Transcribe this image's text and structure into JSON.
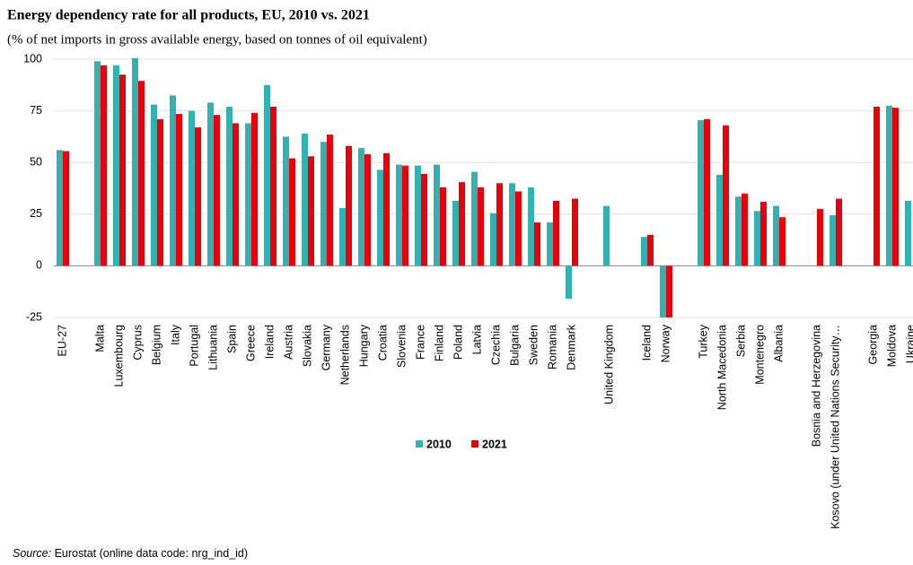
{
  "chart_data": {
    "type": "bar",
    "title": "Energy dependency rate for all products, EU, 2010 vs. 2021",
    "subtitle": "(% of net imports in gross available energy, based on tonnes of oil equivalent)",
    "source_label": "Source:",
    "source": "Eurostat (online data code: nrg_ind_id)",
    "categories": [
      "EU-27",
      null,
      "Malta",
      "Luxembourg",
      "Cyprus",
      "Belgium",
      "Italy",
      "Portugal",
      "Lithuania",
      "Spain",
      "Greece",
      "Ireland",
      "Austria",
      "Slovakia",
      "Germany",
      "Netherlands",
      "Hungary",
      "Croatia",
      "Slovenia",
      "France",
      "Finland",
      "Poland",
      "Latvia",
      "Czechia",
      "Bulgaria",
      "Sweden",
      "Romania",
      "Denmark",
      null,
      "United Kingdom",
      null,
      "Iceland",
      "Norway",
      null,
      "Turkey",
      "North Macedonia",
      "Serbia",
      "Montenegro",
      "Albania",
      null,
      "Bosnia and Herzegovina",
      "Kosovo (under United Nations Security…",
      null,
      "Georgia",
      "Moldova",
      "Ukraine"
    ],
    "series": [
      {
        "name": "2010",
        "color": "#33b1b1",
        "values": [
          56,
          null,
          99,
          97,
          100.5,
          78,
          82.5,
          75,
          79,
          77,
          69,
          87.5,
          62.5,
          64,
          60,
          28,
          57,
          46.5,
          49,
          48.5,
          49,
          31.5,
          45.5,
          25.5,
          40,
          38,
          21,
          -16,
          null,
          29,
          null,
          14,
          -25,
          null,
          70.5,
          44,
          33.5,
          26.5,
          29,
          null,
          null,
          24.5,
          null,
          null,
          77.5,
          31.5
        ]
      },
      {
        "name": "2021",
        "color": "#e8000b",
        "values": [
          55.5,
          null,
          97,
          92.5,
          89.5,
          71,
          73.5,
          67,
          73,
          69,
          74,
          77,
          52,
          53,
          63.5,
          58,
          54,
          54.5,
          48.5,
          44.5,
          38,
          40.5,
          38,
          40,
          36,
          21,
          31.5,
          32.5,
          null,
          null,
          null,
          15,
          -25,
          null,
          71,
          68,
          35,
          31,
          23.5,
          null,
          27.5,
          32.5,
          null,
          77,
          76.5,
          null
        ]
      }
    ],
    "ylim": [
      -25,
      100
    ],
    "yticks": [
      -25,
      0,
      25,
      50,
      75,
      100
    ],
    "grid": true,
    "legend": "bottom"
  }
}
